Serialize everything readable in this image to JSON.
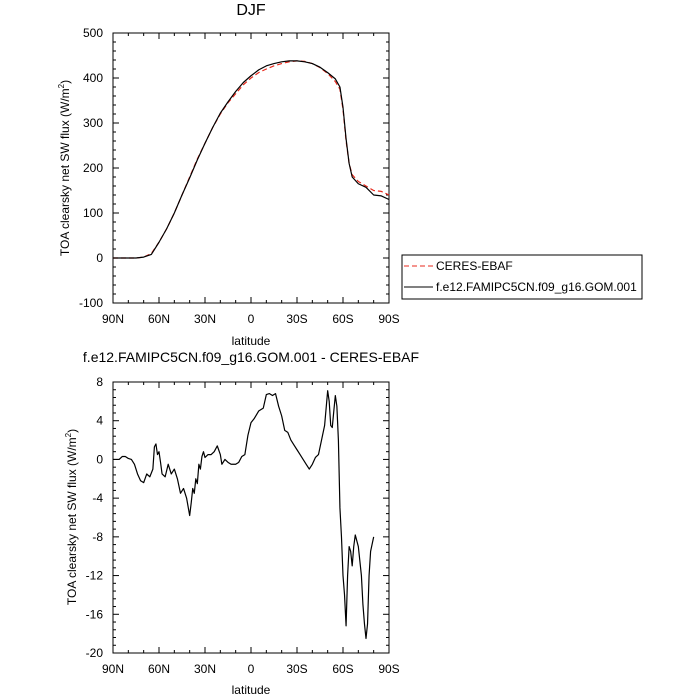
{
  "chart_data": [
    {
      "type": "line",
      "title": "DJF",
      "xlabel": "latitude",
      "ylabel_main": "TOA clearsky net SW flux (W/m",
      "ylabel_sup": "2",
      "ylabel_end": ")",
      "xlim": [
        90,
        -90
      ],
      "ylim": [
        -100,
        500
      ],
      "x_ticks": [
        90,
        60,
        30,
        0,
        -30,
        -60,
        -90
      ],
      "x_tick_labels": [
        "90N",
        "60N",
        "30N",
        "0",
        "30S",
        "60S",
        "90S"
      ],
      "y_ticks": [
        -100,
        0,
        100,
        200,
        300,
        400,
        500
      ],
      "y_tick_labels": [
        "-100",
        "0",
        "100",
        "200",
        "300",
        "400",
        "500"
      ],
      "legend_position": "outside-right",
      "series": [
        {
          "name": "CERES-EBAF",
          "color": "#e8291c",
          "dash": "dashed",
          "points": [
            [
              90,
              0
            ],
            [
              85,
              0
            ],
            [
              80,
              0
            ],
            [
              75,
              0
            ],
            [
              70,
              2
            ],
            [
              65,
              10
            ],
            [
              60,
              35
            ],
            [
              55,
              65
            ],
            [
              50,
              100
            ],
            [
              45,
              140
            ],
            [
              40,
              180
            ],
            [
              35,
              220
            ],
            [
              30,
              255
            ],
            [
              25,
              290
            ],
            [
              20,
              320
            ],
            [
              15,
              345
            ],
            [
              10,
              365
            ],
            [
              5,
              385
            ],
            [
              0,
              400
            ],
            [
              -5,
              412
            ],
            [
              -10,
              420
            ],
            [
              -15,
              427
            ],
            [
              -20,
              432
            ],
            [
              -25,
              436
            ],
            [
              -30,
              438
            ],
            [
              -35,
              437
            ],
            [
              -40,
              432
            ],
            [
              -45,
              423
            ],
            [
              -50,
              410
            ],
            [
              -55,
              392
            ],
            [
              -58,
              375
            ],
            [
              -60,
              330
            ],
            [
              -62,
              260
            ],
            [
              -64,
              210
            ],
            [
              -66,
              185
            ],
            [
              -70,
              170
            ],
            [
              -75,
              160
            ],
            [
              -80,
              150
            ],
            [
              -85,
              148
            ],
            [
              -90,
              140
            ]
          ]
        },
        {
          "name": "f.e12.FAMIPC5CN.f09_g16.GOM.001",
          "color": "#000000",
          "dash": "solid",
          "points": [
            [
              90,
              0
            ],
            [
              85,
              0
            ],
            [
              80,
              0
            ],
            [
              75,
              0
            ],
            [
              70,
              2
            ],
            [
              65,
              8
            ],
            [
              60,
              35
            ],
            [
              55,
              65
            ],
            [
              50,
              100
            ],
            [
              45,
              140
            ],
            [
              40,
              178
            ],
            [
              35,
              218
            ],
            [
              30,
              255
            ],
            [
              25,
              290
            ],
            [
              20,
              322
            ],
            [
              15,
              347
            ],
            [
              10,
              370
            ],
            [
              5,
              390
            ],
            [
              0,
              405
            ],
            [
              -5,
              418
            ],
            [
              -10,
              427
            ],
            [
              -15,
              432
            ],
            [
              -20,
              436
            ],
            [
              -25,
              438
            ],
            [
              -30,
              438
            ],
            [
              -35,
              436
            ],
            [
              -40,
              432
            ],
            [
              -45,
              424
            ],
            [
              -50,
              412
            ],
            [
              -55,
              398
            ],
            [
              -58,
              380
            ],
            [
              -60,
              335
            ],
            [
              -62,
              265
            ],
            [
              -64,
              210
            ],
            [
              -66,
              180
            ],
            [
              -70,
              165
            ],
            [
              -75,
              157
            ],
            [
              -80,
              140
            ],
            [
              -85,
              138
            ],
            [
              -90,
              130
            ]
          ]
        }
      ]
    },
    {
      "type": "line",
      "title": "f.e12.FAMIPC5CN.f09_g16.GOM.001 - CERES-EBAF",
      "xlabel": "latitude",
      "ylabel_main": "TOA clearsky net SW flux (W/m",
      "ylabel_sup": "2",
      "ylabel_end": ")",
      "xlim": [
        90,
        -90
      ],
      "ylim": [
        -20,
        8
      ],
      "x_ticks": [
        90,
        60,
        30,
        0,
        -30,
        -60,
        -90
      ],
      "x_tick_labels": [
        "90N",
        "60N",
        "30N",
        "0",
        "30S",
        "60S",
        "90S"
      ],
      "y_ticks": [
        -20,
        -16,
        -12,
        -8,
        -4,
        0,
        4,
        8
      ],
      "y_tick_labels": [
        "-20",
        "-16",
        "-12",
        "-8",
        "-4",
        "0",
        "4",
        "8"
      ],
      "series": [
        {
          "name": "",
          "color": "#000000",
          "dash": "solid",
          "points": [
            [
              90,
              0
            ],
            [
              88,
              0
            ],
            [
              86,
              0
            ],
            [
              84,
              0.3
            ],
            [
              82,
              0.3
            ],
            [
              80,
              0.1
            ],
            [
              78,
              0
            ],
            [
              76,
              -0.5
            ],
            [
              74,
              -1.5
            ],
            [
              72,
              -2.2
            ],
            [
              70,
              -2.4
            ],
            [
              68,
              -1.5
            ],
            [
              66,
              -1.8
            ],
            [
              64,
              -1
            ],
            [
              63,
              1.3
            ],
            [
              62,
              1.6
            ],
            [
              61,
              0.5
            ],
            [
              60,
              0.8
            ],
            [
              59,
              -0.3
            ],
            [
              58,
              -1.5
            ],
            [
              56,
              -1.8
            ],
            [
              54,
              -0.5
            ],
            [
              52,
              -1.5
            ],
            [
              50,
              -1
            ],
            [
              48,
              -2
            ],
            [
              46,
              -3.5
            ],
            [
              44,
              -3
            ],
            [
              42,
              -4
            ],
            [
              40,
              -5.8
            ],
            [
              39,
              -4.5
            ],
            [
              38,
              -3
            ],
            [
              37,
              -3.5
            ],
            [
              36,
              -2
            ],
            [
              35,
              -2.5
            ],
            [
              34,
              -0.5
            ],
            [
              33,
              -1
            ],
            [
              32,
              0.3
            ],
            [
              31,
              0.8
            ],
            [
              30,
              0.2
            ],
            [
              28,
              0.5
            ],
            [
              26,
              0.5
            ],
            [
              24,
              0.8
            ],
            [
              22,
              1.4
            ],
            [
              20,
              0.5
            ],
            [
              19,
              -0.5
            ],
            [
              17,
              0
            ],
            [
              15,
              -0.3
            ],
            [
              13,
              -0.5
            ],
            [
              10,
              -0.5
            ],
            [
              8,
              -0.3
            ],
            [
              6,
              0.3
            ],
            [
              4,
              0.5
            ],
            [
              2,
              2.5
            ],
            [
              0,
              3.8
            ],
            [
              -2,
              4.2
            ],
            [
              -5,
              5
            ],
            [
              -8,
              5.3
            ],
            [
              -10,
              6.7
            ],
            [
              -12,
              6.8
            ],
            [
              -14,
              6.6
            ],
            [
              -16,
              6.8
            ],
            [
              -18,
              5.5
            ],
            [
              -20,
              4.5
            ],
            [
              -22,
              3
            ],
            [
              -24,
              2.8
            ],
            [
              -26,
              2
            ],
            [
              -28,
              1.5
            ],
            [
              -30,
              1
            ],
            [
              -32,
              0.5
            ],
            [
              -34,
              0
            ],
            [
              -36,
              -0.5
            ],
            [
              -38,
              -1
            ],
            [
              -40,
              -0.5
            ],
            [
              -42,
              0.2
            ],
            [
              -44,
              0.5
            ],
            [
              -46,
              2
            ],
            [
              -48,
              3.5
            ],
            [
              -50,
              7.1
            ],
            [
              -51,
              6
            ],
            [
              -52,
              3.5
            ],
            [
              -53,
              3.3
            ],
            [
              -54,
              5
            ],
            [
              -55,
              6.6
            ],
            [
              -56,
              5.5
            ],
            [
              -57,
              2
            ],
            [
              -58,
              -5
            ],
            [
              -59,
              -8
            ],
            [
              -60,
              -12
            ],
            [
              -61,
              -14
            ],
            [
              -62,
              -17.2
            ],
            [
              -63,
              -12
            ],
            [
              -64,
              -9
            ],
            [
              -65,
              -9.5
            ],
            [
              -66,
              -11
            ],
            [
              -67,
              -9
            ],
            [
              -68,
              -7.8
            ],
            [
              -70,
              -9
            ],
            [
              -72,
              -12
            ],
            [
              -73,
              -15
            ],
            [
              -74,
              -17
            ],
            [
              -75,
              -18.5
            ],
            [
              -76,
              -17
            ],
            [
              -77,
              -12
            ],
            [
              -78,
              -9.5
            ],
            [
              -80,
              -8
            ]
          ]
        }
      ]
    }
  ]
}
